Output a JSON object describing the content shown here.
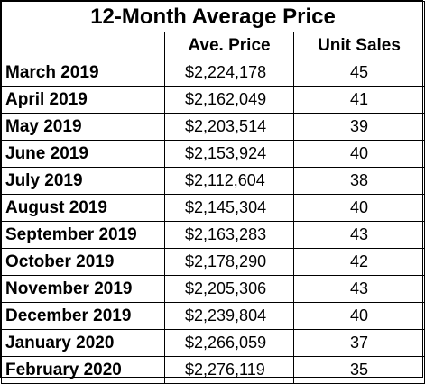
{
  "title": "12-Month Average Price",
  "headers": {
    "month": "",
    "price": "Ave. Price",
    "units": "Unit Sales"
  },
  "rows": [
    {
      "month": "March 2019",
      "price": "$2,224,178",
      "units": "45"
    },
    {
      "month": "April 2019",
      "price": "$2,162,049",
      "units": "41"
    },
    {
      "month": "May 2019",
      "price": "$2,203,514",
      "units": "39"
    },
    {
      "month": "June 2019",
      "price": "$2,153,924",
      "units": "40"
    },
    {
      "month": "July 2019",
      "price": "$2,112,604",
      "units": "38"
    },
    {
      "month": "August 2019",
      "price": "$2,145,304",
      "units": "40"
    },
    {
      "month": "September 2019",
      "price": "$2,163,283",
      "units": "43"
    },
    {
      "month": "October 2019",
      "price": "$2,178,290",
      "units": "42"
    },
    {
      "month": "November 2019",
      "price": "$2,205,306",
      "units": "43"
    },
    {
      "month": "December 2019",
      "price": "$2,239,804",
      "units": "40"
    },
    {
      "month": "January 2020",
      "price": "$2,266,059",
      "units": "37"
    },
    {
      "month": "February 2020",
      "price": "$2,276,119",
      "units": "35"
    }
  ]
}
